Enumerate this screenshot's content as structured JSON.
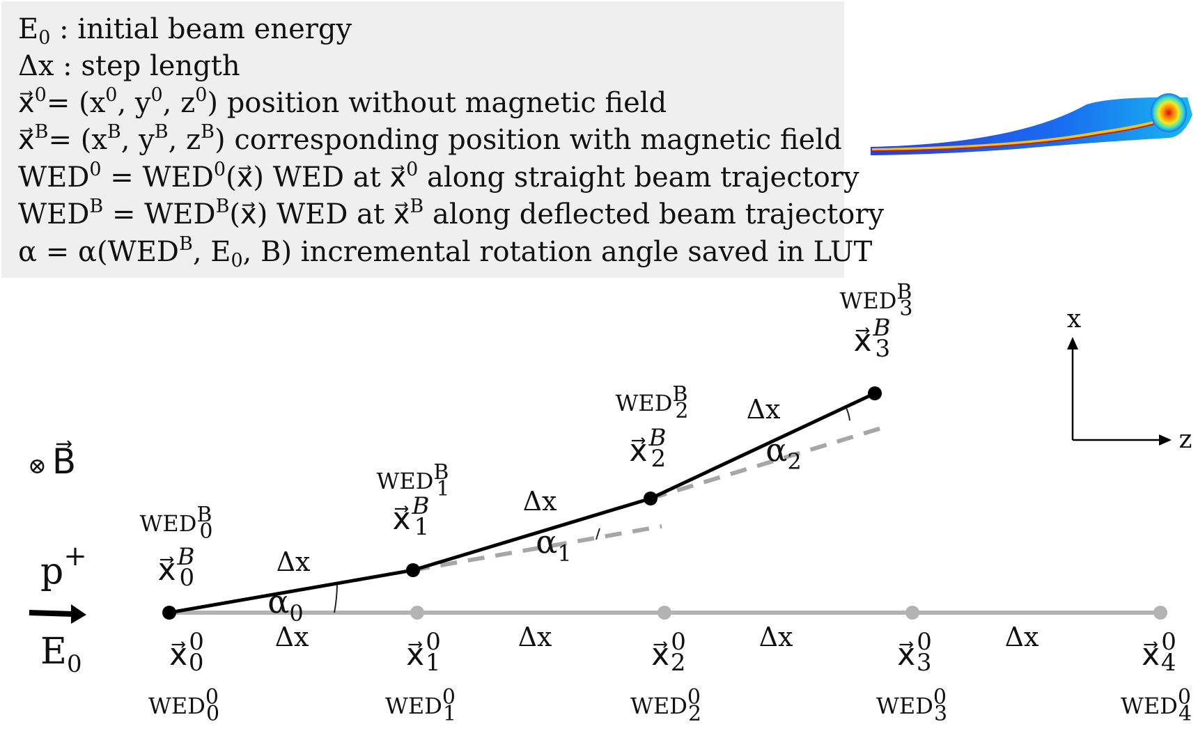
{
  "legend": [
    {
      "id": "e0",
      "segs": [
        [
          "n",
          "E"
        ],
        [
          "sub",
          "0"
        ],
        [
          "n",
          " : initial beam energy"
        ]
      ]
    },
    {
      "id": "dx",
      "segs": [
        [
          "n",
          "Δx : step length"
        ]
      ]
    },
    {
      "id": "x0",
      "segs": [
        [
          "vec",
          "x"
        ],
        [
          "sup",
          "0"
        ],
        [
          "n",
          "= (x"
        ],
        [
          "sup",
          "0"
        ],
        [
          "n",
          ", y"
        ],
        [
          "sup",
          "0"
        ],
        [
          "n",
          ", z"
        ],
        [
          "sup",
          "0"
        ],
        [
          "n",
          ") position without magnetic field"
        ]
      ]
    },
    {
      "id": "xb",
      "segs": [
        [
          "vec",
          "x"
        ],
        [
          "sup",
          "B"
        ],
        [
          "n",
          "= (x"
        ],
        [
          "sup",
          "B"
        ],
        [
          "n",
          ", y"
        ],
        [
          "sup",
          "B"
        ],
        [
          "n",
          ", z"
        ],
        [
          "sup",
          "B"
        ],
        [
          "n",
          ") corresponding position with magnetic field"
        ]
      ]
    },
    {
      "id": "wed0",
      "segs": [
        [
          "n",
          "WED"
        ],
        [
          "sup",
          "0"
        ],
        [
          "n",
          " = WED"
        ],
        [
          "sup",
          "0"
        ],
        [
          "n",
          "("
        ],
        [
          "vec",
          "x"
        ],
        [
          "n",
          ") WED at "
        ],
        [
          "vec",
          "x"
        ],
        [
          "sup",
          "0"
        ],
        [
          "n",
          " along straight beam trajectory"
        ]
      ]
    },
    {
      "id": "wedb",
      "segs": [
        [
          "n",
          "WED"
        ],
        [
          "sup",
          "B"
        ],
        [
          "n",
          " = WED"
        ],
        [
          "sup",
          "B"
        ],
        [
          "n",
          "("
        ],
        [
          "vec",
          "x"
        ],
        [
          "n",
          ") WED at "
        ],
        [
          "vec",
          "x"
        ],
        [
          "sup",
          "B"
        ],
        [
          "n",
          " along deflected beam trajectory"
        ]
      ]
    },
    {
      "id": "alpha",
      "segs": [
        [
          "n",
          "α = α(WED"
        ],
        [
          "sup",
          "B"
        ],
        [
          "n",
          ", E"
        ],
        [
          "sub",
          "0"
        ],
        [
          "n",
          ", B) incremental rotation angle saved in LUT"
        ]
      ]
    }
  ],
  "straight_points": [
    {
      "x": "x",
      "sub": "0",
      "sup": "0",
      "wed": "WED",
      "wed_sub": "0",
      "wed_sup": "0"
    },
    {
      "x": "x",
      "sub": "1",
      "sup": "0",
      "wed": "WED",
      "wed_sub": "1",
      "wed_sup": "0"
    },
    {
      "x": "x",
      "sub": "2",
      "sup": "0",
      "wed": "WED",
      "wed_sub": "2",
      "wed_sup": "0"
    },
    {
      "x": "x",
      "sub": "3",
      "sup": "0",
      "wed": "WED",
      "wed_sub": "3",
      "wed_sup": "0"
    },
    {
      "x": "x",
      "sub": "4",
      "sup": "0",
      "wed": "WED",
      "wed_sub": "4",
      "wed_sup": "0"
    }
  ],
  "deflected_points": [
    {
      "x": "x",
      "sub": "0",
      "sup": "B",
      "wed": "WED",
      "wed_sub": "0",
      "wed_sup": "B"
    },
    {
      "x": "x",
      "sub": "1",
      "sup": "B",
      "wed": "WED",
      "wed_sub": "1",
      "wed_sup": "B"
    },
    {
      "x": "x",
      "sub": "2",
      "sup": "B",
      "wed": "WED",
      "wed_sub": "2",
      "wed_sup": "B"
    },
    {
      "x": "x",
      "sub": "3",
      "sup": "B",
      "wed": "WED",
      "wed_sub": "3",
      "wed_sup": "B"
    }
  ],
  "step_label": "Δx",
  "angles": [
    {
      "base": "α",
      "sub": "0"
    },
    {
      "base": "α",
      "sub": "1"
    },
    {
      "base": "α",
      "sub": "2"
    }
  ],
  "beam": {
    "particle": "p",
    "charge": "+",
    "energy": "E",
    "energy_sub": "0"
  },
  "field": {
    "symbol": "⊗",
    "name": "B"
  },
  "axes": {
    "vertical": "x",
    "horizontal": "z"
  },
  "colors": {
    "deflected": "#000000",
    "straight": "#b3b3b3",
    "dashed": "#a6a6a6",
    "box": "#efefef"
  }
}
